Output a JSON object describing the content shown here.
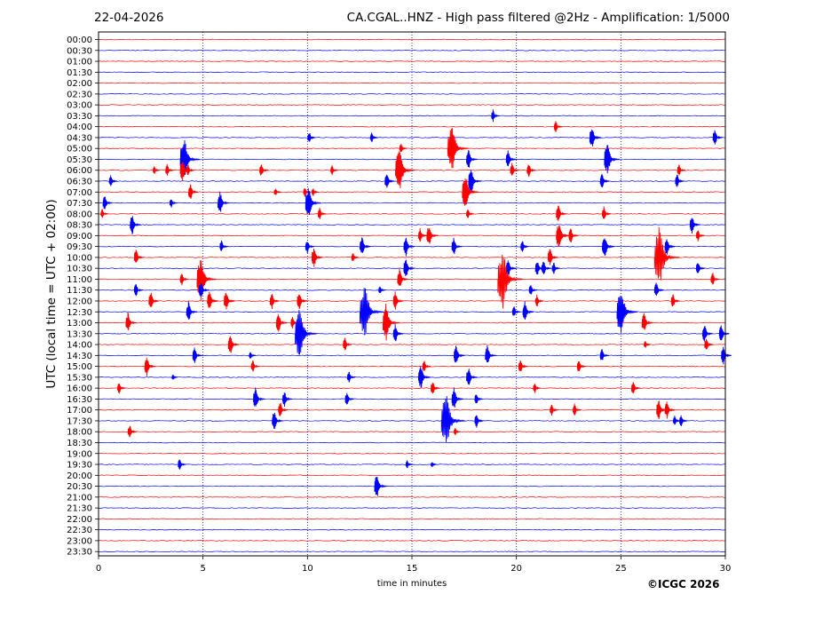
{
  "header": {
    "date": "22-04-2026",
    "title": "CA.CGAL..HNZ - High pass filtered @2Hz - Amplification: 1/5000"
  },
  "footer": {
    "credit": "©ICGC 2026"
  },
  "chart_data": {
    "type": "helicorder",
    "title": "CA.CGAL..HNZ - High pass filtered @2Hz - Amplification: 1/5000",
    "xlabel": "time in minutes",
    "ylabel": "UTC (local time = UTC + 02:00)",
    "xlim": [
      0,
      30
    ],
    "x_ticks": [
      0,
      5,
      10,
      15,
      20,
      25,
      30
    ],
    "vertical_dotted_lines_at": [
      5,
      10,
      15,
      20,
      25
    ],
    "trace_colors": [
      "#ff0000",
      "#0000ff"
    ],
    "y_tick_labels": [
      "00:00",
      "00:30",
      "01:00",
      "01:30",
      "02:00",
      "02:30",
      "03:00",
      "03:30",
      "04:00",
      "04:30",
      "05:00",
      "05:30",
      "06:00",
      "06:30",
      "07:00",
      "07:30",
      "08:00",
      "08:30",
      "09:00",
      "09:30",
      "10:00",
      "10:30",
      "11:00",
      "11:30",
      "12:00",
      "12:30",
      "13:00",
      "13:30",
      "14:00",
      "14:30",
      "15:00",
      "15:30",
      "16:00",
      "16:30",
      "17:00",
      "17:30",
      "18:00",
      "18:30",
      "19:00",
      "19:30",
      "20:00",
      "20:30",
      "21:00",
      "21:30",
      "22:00",
      "22:30",
      "23:00",
      "23:30"
    ],
    "events": [
      {
        "row": "03:30",
        "minute": 18.9,
        "amp": 0.6
      },
      {
        "row": "04:00",
        "minute": 21.9,
        "amp": 0.6
      },
      {
        "row": "04:30",
        "minute": 10.1,
        "amp": 0.6
      },
      {
        "row": "04:30",
        "minute": 13.1,
        "amp": 0.5
      },
      {
        "row": "04:30",
        "minute": 23.6,
        "amp": 1.1
      },
      {
        "row": "04:30",
        "minute": 29.5,
        "amp": 0.8
      },
      {
        "row": "05:00",
        "minute": 14.5,
        "amp": 0.5
      },
      {
        "row": "05:00",
        "minute": 16.8,
        "amp": 2.4
      },
      {
        "row": "05:30",
        "minute": 4.0,
        "amp": 2.2
      },
      {
        "row": "05:30",
        "minute": 17.7,
        "amp": 1.0
      },
      {
        "row": "05:30",
        "minute": 19.6,
        "amp": 0.9
      },
      {
        "row": "05:30",
        "minute": 24.3,
        "amp": 1.6
      },
      {
        "row": "06:00",
        "minute": 2.7,
        "amp": 0.4
      },
      {
        "row": "06:00",
        "minute": 3.3,
        "amp": 0.6
      },
      {
        "row": "06:00",
        "minute": 4.0,
        "amp": 1.1
      },
      {
        "row": "06:00",
        "minute": 4.3,
        "amp": 0.6
      },
      {
        "row": "06:00",
        "minute": 7.8,
        "amp": 0.7
      },
      {
        "row": "06:00",
        "minute": 11.2,
        "amp": 0.5
      },
      {
        "row": "06:00",
        "minute": 14.3,
        "amp": 2.2
      },
      {
        "row": "06:00",
        "minute": 19.8,
        "amp": 0.7
      },
      {
        "row": "06:00",
        "minute": 20.6,
        "amp": 0.7
      },
      {
        "row": "06:00",
        "minute": 27.8,
        "amp": 0.6
      },
      {
        "row": "06:30",
        "minute": 0.6,
        "amp": 0.6
      },
      {
        "row": "06:30",
        "minute": 13.8,
        "amp": 0.8
      },
      {
        "row": "06:30",
        "minute": 17.8,
        "amp": 1.3
      },
      {
        "row": "06:30",
        "minute": 24.1,
        "amp": 0.8
      },
      {
        "row": "06:30",
        "minute": 27.7,
        "amp": 0.7
      },
      {
        "row": "07:00",
        "minute": 4.4,
        "amp": 0.8
      },
      {
        "row": "07:00",
        "minute": 8.5,
        "amp": 0.4
      },
      {
        "row": "07:00",
        "minute": 9.9,
        "amp": 0.5
      },
      {
        "row": "07:00",
        "minute": 10.3,
        "amp": 0.4
      },
      {
        "row": "07:00",
        "minute": 17.5,
        "amp": 1.8
      },
      {
        "row": "07:30",
        "minute": 0.3,
        "amp": 0.8
      },
      {
        "row": "07:30",
        "minute": 3.5,
        "amp": 0.5
      },
      {
        "row": "07:30",
        "minute": 5.8,
        "amp": 1.1
      },
      {
        "row": "07:30",
        "minute": 10.0,
        "amp": 1.6
      },
      {
        "row": "08:00",
        "minute": 0.2,
        "amp": 0.5
      },
      {
        "row": "08:00",
        "minute": 10.6,
        "amp": 0.6
      },
      {
        "row": "08:00",
        "minute": 17.7,
        "amp": 0.5
      },
      {
        "row": "08:00",
        "minute": 22.0,
        "amp": 0.9
      },
      {
        "row": "08:00",
        "minute": 24.2,
        "amp": 0.7
      },
      {
        "row": "08:30",
        "minute": 1.6,
        "amp": 1.0
      },
      {
        "row": "08:30",
        "minute": 28.4,
        "amp": 0.9
      },
      {
        "row": "09:00",
        "minute": 15.4,
        "amp": 0.7
      },
      {
        "row": "09:00",
        "minute": 15.8,
        "amp": 1.1
      },
      {
        "row": "09:00",
        "minute": 22.0,
        "amp": 1.4
      },
      {
        "row": "09:00",
        "minute": 22.6,
        "amp": 0.8
      },
      {
        "row": "09:00",
        "minute": 28.7,
        "amp": 0.6
      },
      {
        "row": "09:30",
        "minute": 5.9,
        "amp": 0.6
      },
      {
        "row": "09:30",
        "minute": 10.0,
        "amp": 0.7
      },
      {
        "row": "09:30",
        "minute": 12.6,
        "amp": 1.0
      },
      {
        "row": "09:30",
        "minute": 14.7,
        "amp": 1.0
      },
      {
        "row": "09:30",
        "minute": 17.0,
        "amp": 0.9
      },
      {
        "row": "09:30",
        "minute": 20.3,
        "amp": 0.6
      },
      {
        "row": "09:30",
        "minute": 24.2,
        "amp": 1.2
      },
      {
        "row": "09:30",
        "minute": 27.2,
        "amp": 0.9
      },
      {
        "row": "10:00",
        "minute": 1.8,
        "amp": 0.8
      },
      {
        "row": "10:00",
        "minute": 10.3,
        "amp": 1.0
      },
      {
        "row": "10:00",
        "minute": 12.2,
        "amp": 0.5
      },
      {
        "row": "10:00",
        "minute": 21.6,
        "amp": 0.9
      },
      {
        "row": "10:00",
        "minute": 26.7,
        "amp": 3.0
      },
      {
        "row": "10:30",
        "minute": 14.7,
        "amp": 1.0
      },
      {
        "row": "10:30",
        "minute": 19.6,
        "amp": 0.9
      },
      {
        "row": "10:30",
        "minute": 21.0,
        "amp": 0.8
      },
      {
        "row": "10:30",
        "minute": 21.3,
        "amp": 0.8
      },
      {
        "row": "10:30",
        "minute": 21.8,
        "amp": 0.6
      },
      {
        "row": "10:30",
        "minute": 28.7,
        "amp": 0.7
      },
      {
        "row": "11:00",
        "minute": 4.0,
        "amp": 0.6
      },
      {
        "row": "11:00",
        "minute": 4.8,
        "amp": 2.2
      },
      {
        "row": "11:00",
        "minute": 14.4,
        "amp": 1.0
      },
      {
        "row": "11:00",
        "minute": 19.2,
        "amp": 3.0
      },
      {
        "row": "11:00",
        "minute": 29.4,
        "amp": 0.7
      },
      {
        "row": "11:30",
        "minute": 1.8,
        "amp": 0.7
      },
      {
        "row": "11:30",
        "minute": 4.9,
        "amp": 0.9
      },
      {
        "row": "11:30",
        "minute": 13.5,
        "amp": 0.4
      },
      {
        "row": "11:30",
        "minute": 20.7,
        "amp": 0.6
      },
      {
        "row": "11:30",
        "minute": 26.7,
        "amp": 0.8
      },
      {
        "row": "12:00",
        "minute": 2.5,
        "amp": 0.9
      },
      {
        "row": "12:00",
        "minute": 5.3,
        "amp": 1.0
      },
      {
        "row": "12:00",
        "minute": 6.1,
        "amp": 1.0
      },
      {
        "row": "12:00",
        "minute": 8.3,
        "amp": 0.8
      },
      {
        "row": "12:00",
        "minute": 9.6,
        "amp": 0.9
      },
      {
        "row": "12:00",
        "minute": 14.2,
        "amp": 0.9
      },
      {
        "row": "12:00",
        "minute": 21.0,
        "amp": 0.6
      },
      {
        "row": "12:00",
        "minute": 27.5,
        "amp": 0.7
      },
      {
        "row": "12:30",
        "minute": 4.3,
        "amp": 1.0
      },
      {
        "row": "12:30",
        "minute": 12.6,
        "amp": 2.8
      },
      {
        "row": "12:30",
        "minute": 19.9,
        "amp": 0.6
      },
      {
        "row": "12:30",
        "minute": 20.4,
        "amp": 1.0
      },
      {
        "row": "12:30",
        "minute": 24.9,
        "amp": 2.4
      },
      {
        "row": "13:00",
        "minute": 1.4,
        "amp": 1.0
      },
      {
        "row": "13:00",
        "minute": 8.6,
        "amp": 1.0
      },
      {
        "row": "13:00",
        "minute": 9.3,
        "amp": 0.6
      },
      {
        "row": "13:00",
        "minute": 13.7,
        "amp": 1.8
      },
      {
        "row": "13:00",
        "minute": 26.1,
        "amp": 1.0
      },
      {
        "row": "13:30",
        "minute": 9.5,
        "amp": 2.6
      },
      {
        "row": "13:30",
        "minute": 14.2,
        "amp": 0.9
      },
      {
        "row": "13:30",
        "minute": 29.0,
        "amp": 0.9
      },
      {
        "row": "13:30",
        "minute": 29.8,
        "amp": 0.9
      },
      {
        "row": "14:00",
        "minute": 6.3,
        "amp": 1.0
      },
      {
        "row": "14:00",
        "minute": 11.8,
        "amp": 0.7
      },
      {
        "row": "14:00",
        "minute": 26.2,
        "amp": 0.4
      },
      {
        "row": "14:00",
        "minute": 29.1,
        "amp": 0.7
      },
      {
        "row": "14:30",
        "minute": 4.6,
        "amp": 0.8
      },
      {
        "row": "14:30",
        "minute": 7.3,
        "amp": 0.4
      },
      {
        "row": "14:30",
        "minute": 17.1,
        "amp": 1.0
      },
      {
        "row": "14:30",
        "minute": 18.6,
        "amp": 1.0
      },
      {
        "row": "14:30",
        "minute": 24.1,
        "amp": 0.7
      },
      {
        "row": "14:30",
        "minute": 29.9,
        "amp": 0.9
      },
      {
        "row": "15:00",
        "minute": 2.3,
        "amp": 1.0
      },
      {
        "row": "15:00",
        "minute": 7.4,
        "amp": 0.6
      },
      {
        "row": "15:00",
        "minute": 15.6,
        "amp": 0.6
      },
      {
        "row": "15:00",
        "minute": 20.2,
        "amp": 0.7
      },
      {
        "row": "15:00",
        "minute": 23.0,
        "amp": 0.7
      },
      {
        "row": "15:30",
        "minute": 3.6,
        "amp": 0.3
      },
      {
        "row": "15:30",
        "minute": 12.0,
        "amp": 0.6
      },
      {
        "row": "15:30",
        "minute": 15.4,
        "amp": 1.2
      },
      {
        "row": "15:30",
        "minute": 17.7,
        "amp": 1.0
      },
      {
        "row": "16:00",
        "minute": 1.0,
        "amp": 0.6
      },
      {
        "row": "16:00",
        "minute": 16.0,
        "amp": 0.7
      },
      {
        "row": "16:00",
        "minute": 20.9,
        "amp": 0.5
      },
      {
        "row": "16:00",
        "minute": 25.6,
        "amp": 0.7
      },
      {
        "row": "16:30",
        "minute": 7.5,
        "amp": 1.1
      },
      {
        "row": "16:30",
        "minute": 8.9,
        "amp": 0.8
      },
      {
        "row": "16:30",
        "minute": 11.9,
        "amp": 0.7
      },
      {
        "row": "16:30",
        "minute": 17.0,
        "amp": 1.1
      },
      {
        "row": "16:30",
        "minute": 18.1,
        "amp": 0.6
      },
      {
        "row": "17:00",
        "minute": 8.7,
        "amp": 0.8
      },
      {
        "row": "17:00",
        "minute": 21.7,
        "amp": 0.6
      },
      {
        "row": "17:00",
        "minute": 22.8,
        "amp": 0.6
      },
      {
        "row": "17:00",
        "minute": 26.8,
        "amp": 1.0
      },
      {
        "row": "17:00",
        "minute": 27.2,
        "amp": 0.9
      },
      {
        "row": "17:30",
        "minute": 8.4,
        "amp": 1.0
      },
      {
        "row": "17:30",
        "minute": 16.5,
        "amp": 2.8
      },
      {
        "row": "17:30",
        "minute": 18.1,
        "amp": 0.7
      },
      {
        "row": "17:30",
        "minute": 27.6,
        "amp": 0.5
      },
      {
        "row": "17:30",
        "minute": 27.9,
        "amp": 0.6
      },
      {
        "row": "18:00",
        "minute": 1.5,
        "amp": 0.7
      },
      {
        "row": "18:00",
        "minute": 17.1,
        "amp": 0.4
      },
      {
        "row": "19:30",
        "minute": 3.9,
        "amp": 0.6
      },
      {
        "row": "19:30",
        "minute": 14.8,
        "amp": 0.4
      },
      {
        "row": "19:30",
        "minute": 16.0,
        "amp": 0.3
      },
      {
        "row": "20:30",
        "minute": 13.3,
        "amp": 1.2
      }
    ]
  }
}
